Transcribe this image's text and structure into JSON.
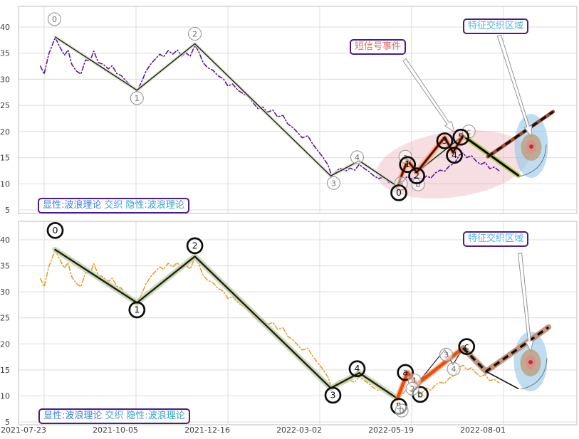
{
  "annotations": {
    "legend": {
      "explicit": "显性:波浪理论",
      "weave": "交织",
      "implicit": "隐性:波浪理论"
    },
    "short_signal": "短信号事件",
    "feature_zone": "特征交织区域"
  },
  "colors": {
    "price_top": "#5a189a",
    "price_bottom": "#e3a02a",
    "wave_core": "#1f1f16",
    "wave_glow_top": "#d8e0c4",
    "wave_glow_bottom": "#c2d2a6",
    "signal_orange": "#ff4500",
    "signal_glow": "#ffa88e",
    "decline_glow": "#a8cc3e",
    "projection_under_top": "#9c4a2a",
    "projection_under_bottom": "#c4876a",
    "dashed_black": "#111111",
    "grid": "#dcdcdc",
    "frame": "#c9c9c9",
    "tick_text": "#3c3c3c",
    "box_border": "#4a1a8e",
    "ellipse_pink": "#e8a7b4",
    "ellipse_blue": "#92c6e8",
    "ellipse_tan": "#c09060",
    "ellipse_core": "#e08a8a",
    "dot_red": "#c03030",
    "circle_thin": "#979797",
    "circle_thin_text": "#6e6e6e",
    "circle_bold": "#0d0d0d",
    "arrow_fill": "#ffffff",
    "arrow_stroke": "#909090"
  },
  "chart_data": {
    "type": "line",
    "title": "",
    "x_tick_labels": [
      "2021-07-23",
      "2021-10-05",
      "2021-12-16",
      "2022-03-02",
      "2022-05-19",
      "2022-08-01"
    ],
    "y_tick_values": [
      40,
      35,
      30,
      25,
      20,
      15,
      10,
      5
    ],
    "ylim": [
      4.3,
      44
    ],
    "grid": true,
    "price": {
      "x": [
        -0.04,
        0,
        0.05,
        0.12,
        0.17,
        0.22,
        0.26,
        0.3,
        0.35,
        0.4,
        0.45,
        0.5,
        0.54,
        0.59,
        0.64,
        0.7,
        0.74,
        0.79,
        0.84,
        0.89,
        0.95,
        1.01,
        1.06,
        1.11,
        1.16,
        1.2,
        1.26,
        1.3,
        1.35,
        1.4,
        1.45,
        1.5,
        1.54,
        1.59,
        1.64,
        1.68,
        1.73,
        1.78,
        1.84,
        1.89,
        1.95,
        2,
        2.05,
        2.11,
        2.16,
        2.22,
        2.27,
        2.33,
        2.38,
        2.43,
        2.49,
        2.54,
        2.6,
        2.65,
        2.71,
        2.76,
        2.81,
        2.87,
        2.92,
        2.98,
        3.03,
        3.09,
        3.13,
        3.18,
        3.22,
        3.28,
        3.33,
        3.38,
        3.43,
        3.48,
        3.53,
        3.59,
        3.64,
        3.7,
        3.75,
        3.81,
        3.85,
        3.9,
        3.95,
        4,
        4.05,
        4.1,
        4.16,
        4.21,
        4.26,
        4.31,
        4.36,
        4.41,
        4.47,
        4.52,
        4.56,
        4.6,
        4.65,
        4.7,
        4.75,
        4.8,
        4.85,
        4.9,
        4.95
      ],
      "y": [
        32.5,
        31,
        34.8,
        38,
        36.2,
        34.6,
        35.6,
        32.9,
        31.6,
        31,
        33.7,
        33.5,
        35.4,
        33.2,
        32.9,
        32,
        32.6,
        31.1,
        30.7,
        29.7,
        28.7,
        27.7,
        29.5,
        31.6,
        32.9,
        33.7,
        34.8,
        34.3,
        35.5,
        34.8,
        35.6,
        34.4,
        35.1,
        34.4,
        36.5,
        35.4,
        33.2,
        32.2,
        31.7,
        30.7,
        30.1,
        28.7,
        29.1,
        27.9,
        27.3,
        26.7,
        25.6,
        24.3,
        24.7,
        23.7,
        24.1,
        22.8,
        23.1,
        21.5,
        20.7,
        19.8,
        18.8,
        19.2,
        17.7,
        16.3,
        15.2,
        13.6,
        11.5,
        12.4,
        13,
        12.4,
        13,
        12.6,
        13.7,
        13,
        12.4,
        11.5,
        11,
        11.3,
        10.3,
        9.9,
        9.4,
        10.3,
        11.4,
        10.9,
        11.3,
        10.4,
        11.5,
        11.1,
        12.1,
        12.6,
        12.4,
        13.4,
        14,
        15.5,
        15.9,
        15,
        15.4,
        14.4,
        13.7,
        14.1,
        12.9,
        13.2,
        12.5
      ]
    },
    "explicit_wave": {
      "labels": [
        "0",
        "1",
        "2",
        "3",
        "4",
        "5",
        "a",
        "b",
        "c"
      ],
      "x": [
        0.12,
        1.01,
        1.64,
        3.12,
        3.43,
        3.845,
        3.955,
        4.055,
        4.56
      ],
      "y": [
        38.1,
        27.9,
        36.8,
        11.5,
        14.4,
        9.5,
        14.5,
        12.2,
        19.2
      ]
    },
    "implicit_subwave": {
      "labels": [
        "b",
        "3",
        "4",
        "c"
      ],
      "x": [
        4.055,
        4.36,
        4.45,
        4.56
      ],
      "y": [
        12.2,
        18.9,
        16.0,
        19.2
      ]
    },
    "signal_wave_top": {
      "labels": [
        "0",
        "1",
        "2",
        "3",
        "4",
        "5"
      ],
      "x": [
        3.845,
        3.955,
        4.055,
        4.36,
        4.45,
        4.56
      ],
      "y": [
        9.5,
        14.5,
        12.2,
        18.9,
        16.0,
        19.2
      ]
    },
    "signal_wave_bottom": {
      "labels": [
        "5",
        "a",
        "b",
        "c"
      ],
      "x": [
        3.845,
        3.955,
        4.055,
        4.56
      ],
      "y": [
        9.5,
        14.5,
        12.2,
        19.2
      ]
    },
    "decline_line_top": {
      "x": [
        4.56,
        5.16
      ],
      "y": [
        19.2,
        11.6
      ]
    },
    "projection_dashed_top": {
      "x": [
        4.83,
        5.54
      ],
      "y": [
        15.2,
        23.8
      ]
    },
    "projection_dashed_bottom": {
      "x": [
        4.56,
        4.81,
        5.49
      ],
      "y": [
        19.2,
        14.7,
        23.2
      ]
    },
    "tail_line_bottom": {
      "x": [
        4.81,
        5.16
      ],
      "y": [
        14.7,
        11.4
      ]
    },
    "panels": [
      {
        "name": "explicit-panel",
        "circles": [
          {
            "label": "0",
            "x": 0.12,
            "v": 38.1,
            "ox": -1,
            "oy": -25,
            "style": "thin"
          },
          {
            "label": "1",
            "x": 1.01,
            "v": 27.9,
            "ox": 0,
            "oy": 11,
            "style": "thin"
          },
          {
            "label": "2",
            "x": 1.64,
            "v": 36.8,
            "ox": 0,
            "oy": -14,
            "style": "thin"
          },
          {
            "label": "3",
            "x": 3.12,
            "v": 11.5,
            "ox": 4,
            "oy": 10,
            "style": "thin"
          },
          {
            "label": "4",
            "x": 3.43,
            "v": 14.4,
            "ox": -3,
            "oy": -5,
            "style": "thin"
          },
          {
            "label": "5",
            "x": 3.845,
            "v": 9.5,
            "ox": 5,
            "oy": -4,
            "style": "thin"
          },
          {
            "label": "a",
            "x": 3.955,
            "v": 14.5,
            "ox": -3,
            "oy": -5,
            "style": "thin"
          },
          {
            "label": "b",
            "x": 4.055,
            "v": 12.2,
            "ox": 2,
            "oy": 17,
            "style": "thin"
          },
          {
            "label": "c",
            "x": 4.56,
            "v": 19.2,
            "ox": 8,
            "oy": -6,
            "style": "thin"
          },
          {
            "label": "0",
            "x": 3.845,
            "v": 9.5,
            "ox": 2,
            "oy": 9,
            "style": "bold"
          },
          {
            "label": "1",
            "x": 3.955,
            "v": 14.5,
            "ox": 0,
            "oy": 6,
            "style": "bold"
          },
          {
            "label": "2",
            "x": 4.055,
            "v": 12.2,
            "ox": 0,
            "oy": 5,
            "style": "bold"
          },
          {
            "label": "3",
            "x": 4.36,
            "v": 18.9,
            "ox": 0,
            "oy": 5,
            "style": "bold"
          },
          {
            "label": "4",
            "x": 4.45,
            "v": 16.0,
            "ox": 2,
            "oy": 4,
            "style": "bold"
          },
          {
            "label": "5",
            "x": 4.56,
            "v": 19.2,
            "ox": -3,
            "oy": 2,
            "style": "bold"
          }
        ]
      },
      {
        "name": "implicit-panel",
        "circles": [
          {
            "label": "0",
            "x": 0.12,
            "v": 38.1,
            "ox": 0,
            "oy": -27,
            "style": "bold"
          },
          {
            "label": "1",
            "x": 1.01,
            "v": 27.9,
            "ox": 0,
            "oy": 10,
            "style": "bold"
          },
          {
            "label": "2",
            "x": 1.64,
            "v": 36.8,
            "ox": 0,
            "oy": -15,
            "style": "bold"
          },
          {
            "label": "3",
            "x": 3.12,
            "v": 11.5,
            "ox": 3,
            "oy": 10,
            "style": "bold"
          },
          {
            "label": "4",
            "x": 3.43,
            "v": 14.4,
            "ox": -3,
            "oy": -6,
            "style": "bold"
          },
          {
            "label": "5",
            "x": 3.845,
            "v": 9.5,
            "ox": 2,
            "oy": 11,
            "style": "bold"
          },
          {
            "label": "a",
            "x": 3.955,
            "v": 14.5,
            "ox": -3,
            "oy": 0,
            "style": "bold"
          },
          {
            "label": "b",
            "x": 4.055,
            "v": 12.2,
            "ox": 5,
            "oy": 14,
            "style": "bold"
          },
          {
            "label": "c",
            "x": 4.56,
            "v": 19.2,
            "ox": 5,
            "oy": -2,
            "style": "bold"
          },
          {
            "label": "0",
            "x": 3.845,
            "v": 9.5,
            "ox": 6,
            "oy": 17,
            "style": "thin"
          },
          {
            "label": "1",
            "x": 3.955,
            "v": 14.5,
            "ox": 10,
            "oy": 11,
            "style": "thin"
          },
          {
            "label": "2",
            "x": 4.055,
            "v": 12.2,
            "ox": -6,
            "oy": 6,
            "style": "thin"
          },
          {
            "label": "3",
            "x": 4.36,
            "v": 18.9,
            "ox": 2,
            "oy": 7,
            "style": "thin"
          },
          {
            "label": "4",
            "x": 4.45,
            "v": 16.0,
            "ox": 1,
            "oy": 6,
            "style": "thin"
          }
        ]
      }
    ]
  }
}
